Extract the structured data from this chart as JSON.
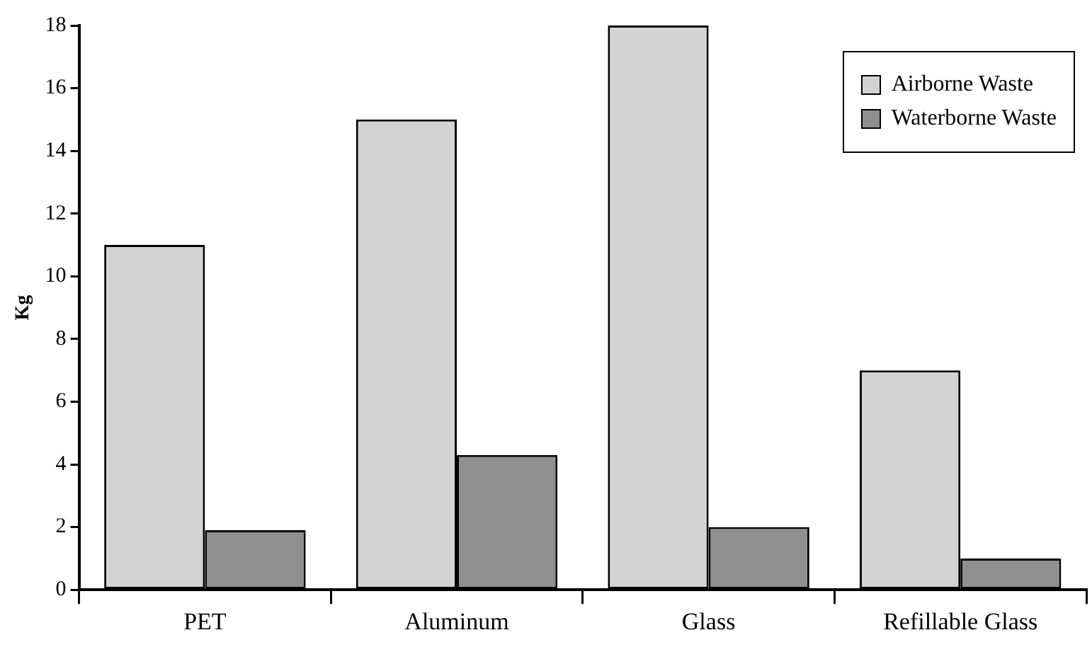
{
  "chart_data": {
    "type": "bar",
    "ylabel": "Kg",
    "categories": [
      "PET",
      "Aluminum",
      "Glass",
      "Refillable Glass"
    ],
    "series": [
      {
        "name": "Airborne Waste",
        "color": "#d3d3d3",
        "values": [
          11,
          15,
          18,
          7
        ]
      },
      {
        "name": "Waterborne Waste",
        "color": "#8f8f8f",
        "values": [
          1.9,
          4.3,
          2.0,
          1.0
        ]
      }
    ],
    "ylim": [
      0,
      18
    ],
    "yticks": [
      0,
      2,
      4,
      6,
      8,
      10,
      12,
      14,
      16,
      18
    ],
    "grid": false,
    "legend": "top right"
  }
}
